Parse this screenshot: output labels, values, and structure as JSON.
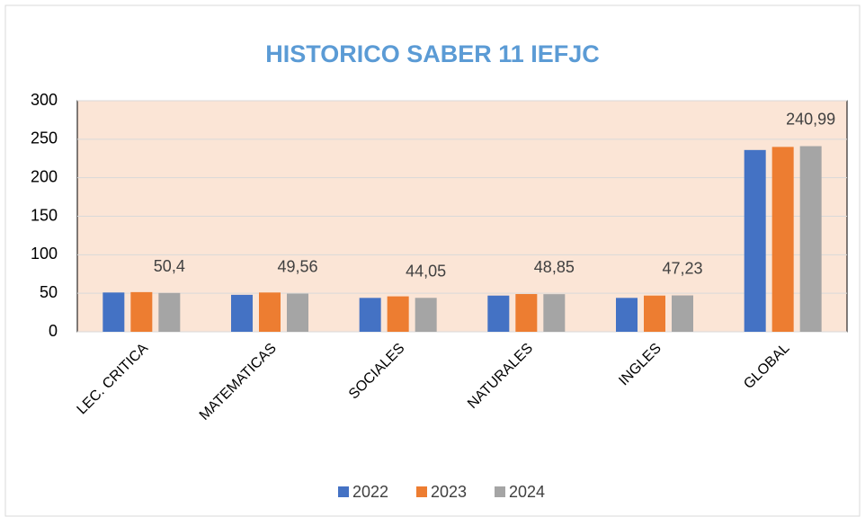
{
  "chart_data": {
    "type": "bar",
    "title": "HISTORICO SABER 11 IEFJC",
    "categories": [
      "LEC. CRITICA",
      "MATEMATICAS",
      "SOCIALES",
      "NATURALES",
      "INGLES",
      "GLOBAL"
    ],
    "series": [
      {
        "name": "2022",
        "color": "#4472c4",
        "values": [
          51,
          48,
          44,
          47,
          44,
          236
        ]
      },
      {
        "name": "2023",
        "color": "#ed7d31",
        "values": [
          51.5,
          51,
          46,
          49,
          47,
          240
        ]
      },
      {
        "name": "2024",
        "color": "#a5a5a5",
        "values": [
          50.4,
          49.56,
          44.05,
          48.85,
          47.23,
          240.99
        ],
        "value_labels": [
          "50,4",
          "49,56",
          "44,05",
          "48,85",
          "47,23",
          "240,99"
        ]
      }
    ],
    "ylim": [
      0,
      300
    ],
    "yticks": [
      0,
      50,
      100,
      150,
      200,
      250,
      300
    ],
    "grid": true,
    "legend": "bottom"
  }
}
